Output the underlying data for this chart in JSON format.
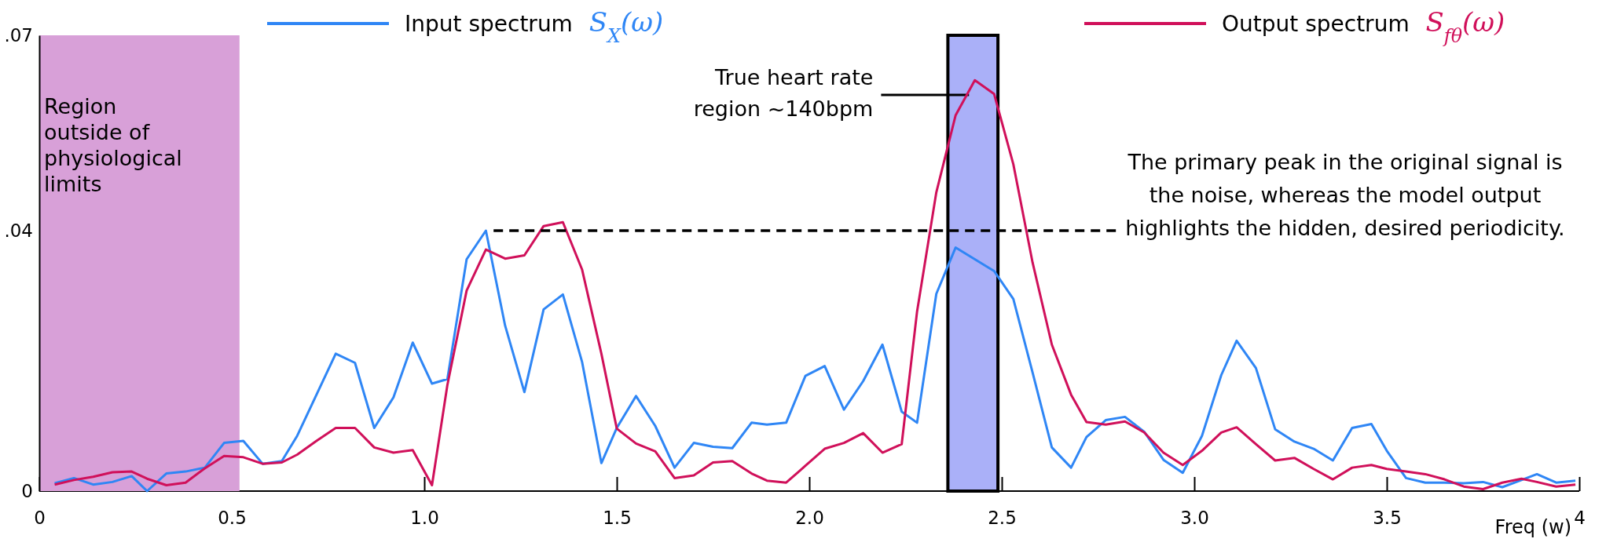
{
  "chart_data": {
    "type": "line",
    "x": [
      0.04,
      0.09,
      0.14,
      0.19,
      0.24,
      0.28,
      0.33,
      0.38,
      0.43,
      0.48,
      0.53,
      0.58,
      0.63,
      0.67,
      0.72,
      0.77,
      0.82,
      0.87,
      0.92,
      0.97,
      1.02,
      1.06,
      1.11,
      1.16,
      1.21,
      1.26,
      1.31,
      1.36,
      1.41,
      1.46,
      1.5,
      1.55,
      1.6,
      1.65,
      1.7,
      1.75,
      1.8,
      1.85,
      1.89,
      1.94,
      1.99,
      2.04,
      2.09,
      2.14,
      2.19,
      2.24,
      2.28,
      2.33,
      2.38,
      2.43,
      2.48,
      2.53,
      2.58,
      2.63,
      2.68,
      2.72,
      2.77,
      2.82,
      2.87,
      2.92,
      2.97,
      3.02,
      3.07,
      3.11,
      3.16,
      3.21,
      3.26,
      3.31,
      3.36,
      3.41,
      3.46,
      3.5,
      3.55,
      3.6,
      3.65,
      3.7,
      3.75,
      3.8,
      3.85,
      3.89,
      3.94,
      3.99
    ],
    "series": [
      {
        "name": "Input spectrum S$_{X}$(ω)",
        "color": "#2f86f5",
        "values": [
          0.0012,
          0.002,
          0.001,
          0.0014,
          0.0023,
          0.0,
          0.0027,
          0.003,
          0.0036,
          0.0074,
          0.0077,
          0.0042,
          0.0046,
          0.0085,
          0.0148,
          0.0211,
          0.0197,
          0.0097,
          0.0144,
          0.0228,
          0.0165,
          0.0172,
          0.0356,
          0.04,
          0.0254,
          0.0152,
          0.0279,
          0.0302,
          0.0198,
          0.0043,
          0.0097,
          0.0146,
          0.01,
          0.0036,
          0.0074,
          0.0068,
          0.0066,
          0.0105,
          0.0102,
          0.0105,
          0.0177,
          0.0192,
          0.0125,
          0.0169,
          0.0225,
          0.0122,
          0.0105,
          0.0303,
          0.0374,
          0.0356,
          0.0338,
          0.0295,
          0.0182,
          0.0067,
          0.0036,
          0.0083,
          0.0109,
          0.0114,
          0.0091,
          0.0048,
          0.0028,
          0.0085,
          0.0178,
          0.0231,
          0.0189,
          0.0095,
          0.0076,
          0.0065,
          0.0047,
          0.0097,
          0.0103,
          0.0062,
          0.002,
          0.0013,
          0.0013,
          0.0012,
          0.0014,
          0.0006,
          0.0017,
          0.0026,
          0.0013,
          0.0016
        ]
      },
      {
        "name": "Output spectrum S$_{fθ}$(ω)",
        "color": "#d0105a",
        "values": [
          0.001,
          0.0017,
          0.0022,
          0.0029,
          0.003,
          0.0019,
          0.0009,
          0.0013,
          0.0035,
          0.0054,
          0.0052,
          0.0042,
          0.0044,
          0.0056,
          0.0077,
          0.0097,
          0.0097,
          0.0067,
          0.0059,
          0.0063,
          0.0009,
          0.0163,
          0.0308,
          0.0371,
          0.0357,
          0.0362,
          0.0407,
          0.0413,
          0.034,
          0.0211,
          0.0096,
          0.0073,
          0.0061,
          0.002,
          0.0024,
          0.0044,
          0.0046,
          0.0027,
          0.0016,
          0.0013,
          0.0039,
          0.0065,
          0.0074,
          0.0089,
          0.0059,
          0.0072,
          0.0276,
          0.0459,
          0.0577,
          0.0631,
          0.061,
          0.0502,
          0.0351,
          0.0225,
          0.0148,
          0.0106,
          0.0102,
          0.0107,
          0.009,
          0.0059,
          0.004,
          0.0062,
          0.009,
          0.0098,
          0.0072,
          0.0047,
          0.0051,
          0.0034,
          0.0018,
          0.0036,
          0.004,
          0.0034,
          0.003,
          0.0026,
          0.0018,
          0.0007,
          0.0003,
          0.0013,
          0.0019,
          0.0014,
          0.0007,
          0.001
        ]
      },
      {
        "type": "line",
        "x": [
          1.18,
          2.8
        ],
        "values": [
          0.04,
          0.04
        ],
        "color": "#000000",
        "line_style": "dashed"
      }
    ],
    "xlabel": "Freq (w)",
    "xlim": [
      0,
      4
    ],
    "xticks": [
      0,
      {
        "value": 0.5,
        "label": "0.5"
      },
      {
        "value": 1,
        "label": "1.0"
      },
      1.5,
      {
        "value": 2,
        "label": "2.0"
      },
      2.5,
      {
        "value": 3,
        "label": "3.0"
      },
      3.5,
      4
    ],
    "ylim": [
      0,
      0.07
    ],
    "yticks": [
      {
        "value": 0,
        "label": "0"
      },
      {
        "value": 0.04,
        "label": ".04"
      },
      {
        "value": 0.07,
        "label": ".07"
      }
    ],
    "bands": [
      {
        "axis": "x",
        "from": 0,
        "to": 0.52,
        "label": "Region outside of physiological limits",
        "color": "#d8a0d8"
      },
      {
        "axis": "x",
        "from": 2.36,
        "to": 2.49,
        "label": "True heart rate region ~140bpm",
        "color": "#aab0f8"
      }
    ],
    "annotations": [
      "The primary peak in the original signal is the noise, whereas the model output highlights the hidden, desired periodicity."
    ],
    "legend": "top",
    "line_style": "solid"
  }
}
